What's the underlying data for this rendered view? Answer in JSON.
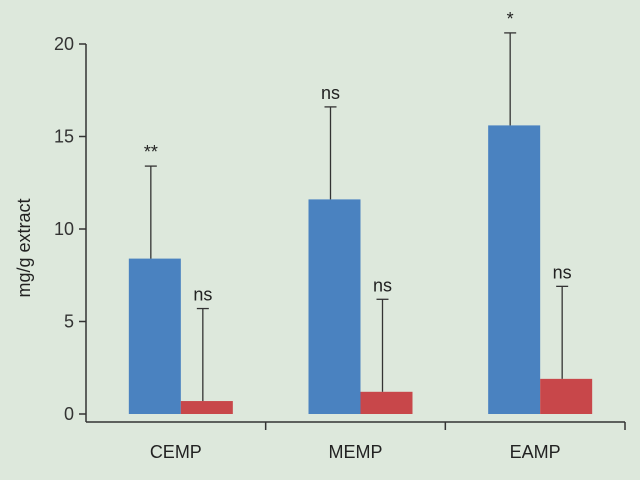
{
  "chart_data": {
    "type": "bar",
    "categories": [
      "CEMP",
      "MEMP",
      "EAMP"
    ],
    "ylabel": "mg/g extract",
    "ylim": [
      0,
      20
    ],
    "yticks": [
      "0",
      "5",
      "10",
      "15",
      "20"
    ],
    "grid": false,
    "series": [
      {
        "color": "#4a82c0",
        "values": [
          8.4,
          11.6,
          15.6
        ],
        "errors": [
          5.0,
          5.0,
          5.0
        ],
        "significance": [
          "**",
          "ns",
          "*"
        ]
      },
      {
        "color": "#c8474a",
        "values": [
          0.7,
          1.2,
          1.9
        ],
        "errors": [
          5.0,
          5.0,
          5.0
        ],
        "significance": [
          "ns",
          "ns",
          "ns"
        ]
      }
    ]
  },
  "colors": {
    "background": "#dde8dc",
    "axis": "#333333"
  }
}
